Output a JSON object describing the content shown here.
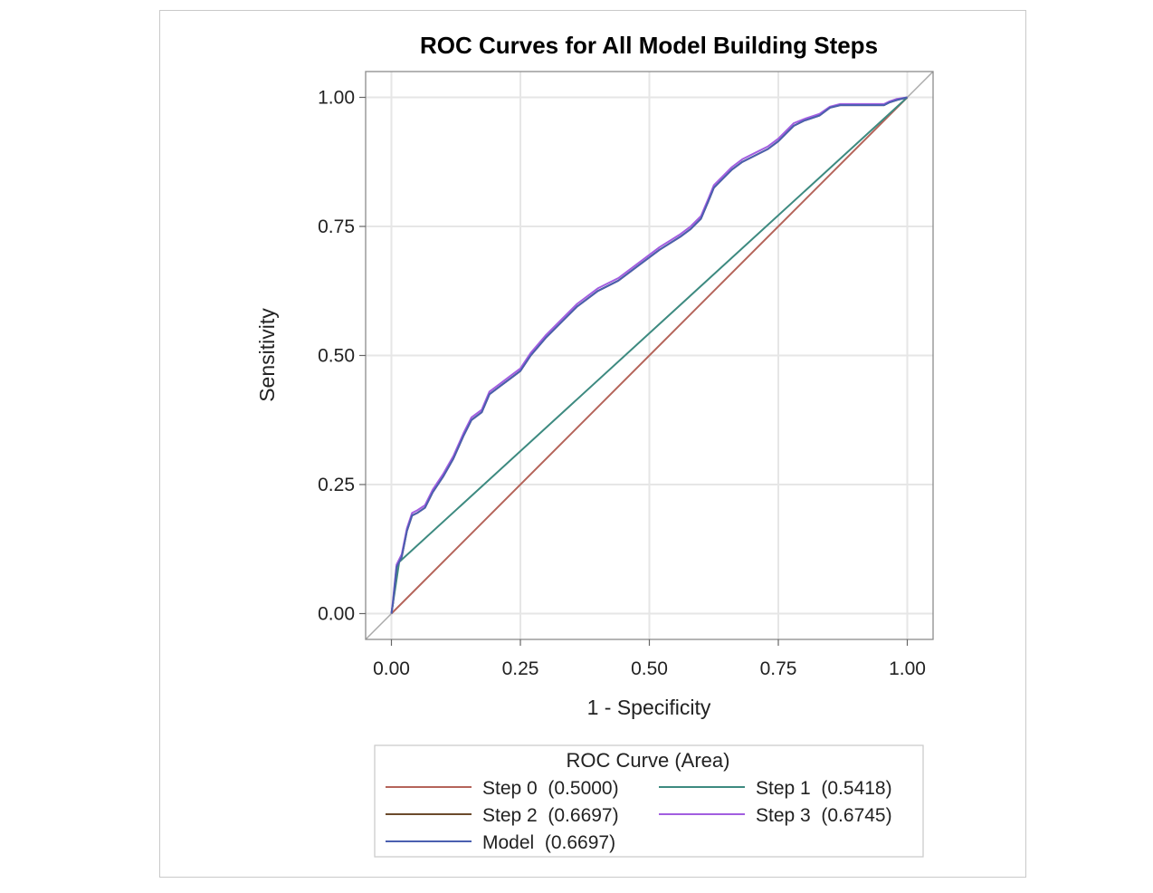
{
  "chart_data": {
    "type": "line",
    "title": "ROC Curves for All Model Building Steps",
    "xlabel": "1 - Specificity",
    "ylabel": "Sensitivity",
    "xlim": [
      -0.05,
      1.05
    ],
    "ylim": [
      -0.05,
      1.05
    ],
    "x_ticks": [
      "0.00",
      "0.25",
      "0.50",
      "0.75",
      "1.00"
    ],
    "y_ticks": [
      "0.00",
      "0.25",
      "0.50",
      "0.75",
      "1.00"
    ],
    "x_tick_values": [
      0,
      0.25,
      0.5,
      0.75,
      1.0
    ],
    "y_tick_values": [
      0,
      0.25,
      0.5,
      0.75,
      1.0
    ],
    "grid": true,
    "reference_line": {
      "x": [
        -0.05,
        1.05
      ],
      "y": [
        -0.05,
        1.05
      ],
      "color": "#aaaaaa"
    },
    "legend": {
      "title": "ROC Curve (Area)",
      "placement": "bottom",
      "entries": [
        "Step 0  (0.5000)",
        "Step 1  (0.5418)",
        "Step 2  (0.6697)",
        "Step 3  (0.6745)",
        "Model  (0.6697)"
      ]
    },
    "series": [
      {
        "name": "Step 0  (0.5000)",
        "color": "#b5645a",
        "x": [
          0,
          1
        ],
        "y": [
          0,
          1
        ]
      },
      {
        "name": "Step 1  (0.5418)",
        "color": "#3d8a80",
        "x": [
          0,
          0.015,
          1
        ],
        "y": [
          0,
          0.1,
          1
        ]
      },
      {
        "name": "Step 2  (0.6697)",
        "color": "#6b4a2c",
        "x": [
          0,
          0.003,
          0.01,
          0.02,
          0.03,
          0.04,
          0.05,
          0.065,
          0.08,
          0.1,
          0.12,
          0.14,
          0.155,
          0.175,
          0.19,
          0.21,
          0.23,
          0.25,
          0.27,
          0.3,
          0.33,
          0.36,
          0.4,
          0.44,
          0.48,
          0.52,
          0.56,
          0.58,
          0.6,
          0.615,
          0.625,
          0.64,
          0.66,
          0.68,
          0.7,
          0.73,
          0.75,
          0.77,
          0.78,
          0.8,
          0.83,
          0.85,
          0.87,
          0.9,
          0.93,
          0.955,
          0.965,
          0.98,
          1.0
        ],
        "y": [
          0,
          0.02,
          0.09,
          0.11,
          0.16,
          0.19,
          0.195,
          0.205,
          0.235,
          0.265,
          0.3,
          0.345,
          0.375,
          0.39,
          0.425,
          0.44,
          0.455,
          0.47,
          0.5,
          0.535,
          0.565,
          0.595,
          0.625,
          0.645,
          0.675,
          0.705,
          0.73,
          0.745,
          0.765,
          0.8,
          0.825,
          0.84,
          0.86,
          0.875,
          0.885,
          0.9,
          0.915,
          0.935,
          0.945,
          0.955,
          0.965,
          0.98,
          0.985,
          0.985,
          0.985,
          0.985,
          0.99,
          0.995,
          1.0
        ]
      },
      {
        "name": "Step 3  (0.6745)",
        "color": "#a25ee0",
        "x": [
          0,
          0.003,
          0.01,
          0.02,
          0.03,
          0.04,
          0.05,
          0.065,
          0.08,
          0.1,
          0.12,
          0.14,
          0.155,
          0.175,
          0.19,
          0.21,
          0.23,
          0.25,
          0.27,
          0.3,
          0.33,
          0.36,
          0.4,
          0.44,
          0.48,
          0.52,
          0.56,
          0.58,
          0.6,
          0.615,
          0.625,
          0.64,
          0.66,
          0.68,
          0.7,
          0.73,
          0.75,
          0.77,
          0.78,
          0.8,
          0.83,
          0.85,
          0.87,
          0.9,
          0.93,
          0.955,
          0.965,
          0.98,
          1.0
        ],
        "y": [
          0,
          0.025,
          0.095,
          0.115,
          0.165,
          0.195,
          0.2,
          0.21,
          0.24,
          0.27,
          0.305,
          0.35,
          0.38,
          0.395,
          0.43,
          0.445,
          0.46,
          0.475,
          0.505,
          0.54,
          0.57,
          0.6,
          0.63,
          0.65,
          0.68,
          0.71,
          0.735,
          0.75,
          0.77,
          0.805,
          0.83,
          0.845,
          0.865,
          0.88,
          0.89,
          0.905,
          0.92,
          0.94,
          0.95,
          0.958,
          0.968,
          0.982,
          0.987,
          0.987,
          0.987,
          0.987,
          0.992,
          0.997,
          1.0
        ]
      },
      {
        "name": "Model  (0.6697)",
        "color": "#4a5fb0",
        "x": [
          0,
          0.003,
          0.01,
          0.02,
          0.03,
          0.04,
          0.05,
          0.065,
          0.08,
          0.1,
          0.12,
          0.14,
          0.155,
          0.175,
          0.19,
          0.21,
          0.23,
          0.25,
          0.27,
          0.3,
          0.33,
          0.36,
          0.4,
          0.44,
          0.48,
          0.52,
          0.56,
          0.58,
          0.6,
          0.615,
          0.625,
          0.64,
          0.66,
          0.68,
          0.7,
          0.73,
          0.75,
          0.77,
          0.78,
          0.8,
          0.83,
          0.85,
          0.87,
          0.9,
          0.93,
          0.955,
          0.965,
          0.98,
          1.0
        ],
        "y": [
          0,
          0.02,
          0.09,
          0.11,
          0.16,
          0.19,
          0.195,
          0.205,
          0.235,
          0.265,
          0.3,
          0.345,
          0.375,
          0.39,
          0.425,
          0.44,
          0.455,
          0.47,
          0.5,
          0.535,
          0.565,
          0.595,
          0.625,
          0.645,
          0.675,
          0.705,
          0.73,
          0.745,
          0.765,
          0.8,
          0.825,
          0.84,
          0.86,
          0.875,
          0.885,
          0.9,
          0.915,
          0.935,
          0.945,
          0.955,
          0.965,
          0.98,
          0.985,
          0.985,
          0.985,
          0.985,
          0.99,
          0.995,
          1.0
        ]
      }
    ]
  }
}
